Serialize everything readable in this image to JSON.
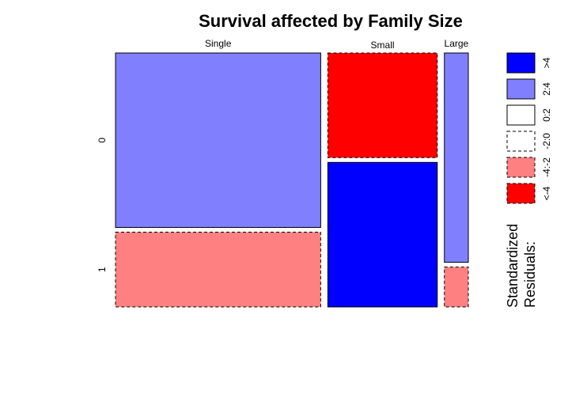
{
  "chart_data": {
    "type": "mosaic",
    "title": "Survival affected by Family Size",
    "column_variable_levels": [
      "Single",
      "Small",
      "Large"
    ],
    "row_variable_levels": [
      "0",
      "1"
    ],
    "column_proportions": [
      0.6,
      0.32,
      0.07
    ],
    "cells": [
      {
        "column": "Single",
        "row": "0",
        "proportion_within_column": 0.7,
        "residual_class": "2:4"
      },
      {
        "column": "Single",
        "row": "1",
        "proportion_within_column": 0.3,
        "residual_class": "-4:-2"
      },
      {
        "column": "Small",
        "row": "0",
        "proportion_within_column": 0.42,
        "residual_class": "<-4"
      },
      {
        "column": "Small",
        "row": "1",
        "proportion_within_column": 0.58,
        "residual_class": ">4"
      },
      {
        "column": "Large",
        "row": "0",
        "proportion_within_column": 0.84,
        "residual_class": "2:4"
      },
      {
        "column": "Large",
        "row": "1",
        "proportion_within_column": 0.16,
        "residual_class": "-4:-2"
      }
    ],
    "legend": {
      "title_lines": [
        "Standardized",
        "Residuals:"
      ],
      "entries": [
        {
          "label": ">4",
          "color": "#0000ff",
          "dashed": false
        },
        {
          "label": "2:4",
          "color": "#8080ff",
          "dashed": false
        },
        {
          "label": "0:2",
          "color": "#ffffff",
          "dashed": false
        },
        {
          "label": "-2:0",
          "color": "#ffffff",
          "dashed": true
        },
        {
          "label": "-4:-2",
          "color": "#ff8080",
          "dashed": true
        },
        {
          "label": "<-4",
          "color": "#ff0000",
          "dashed": true
        }
      ]
    }
  }
}
